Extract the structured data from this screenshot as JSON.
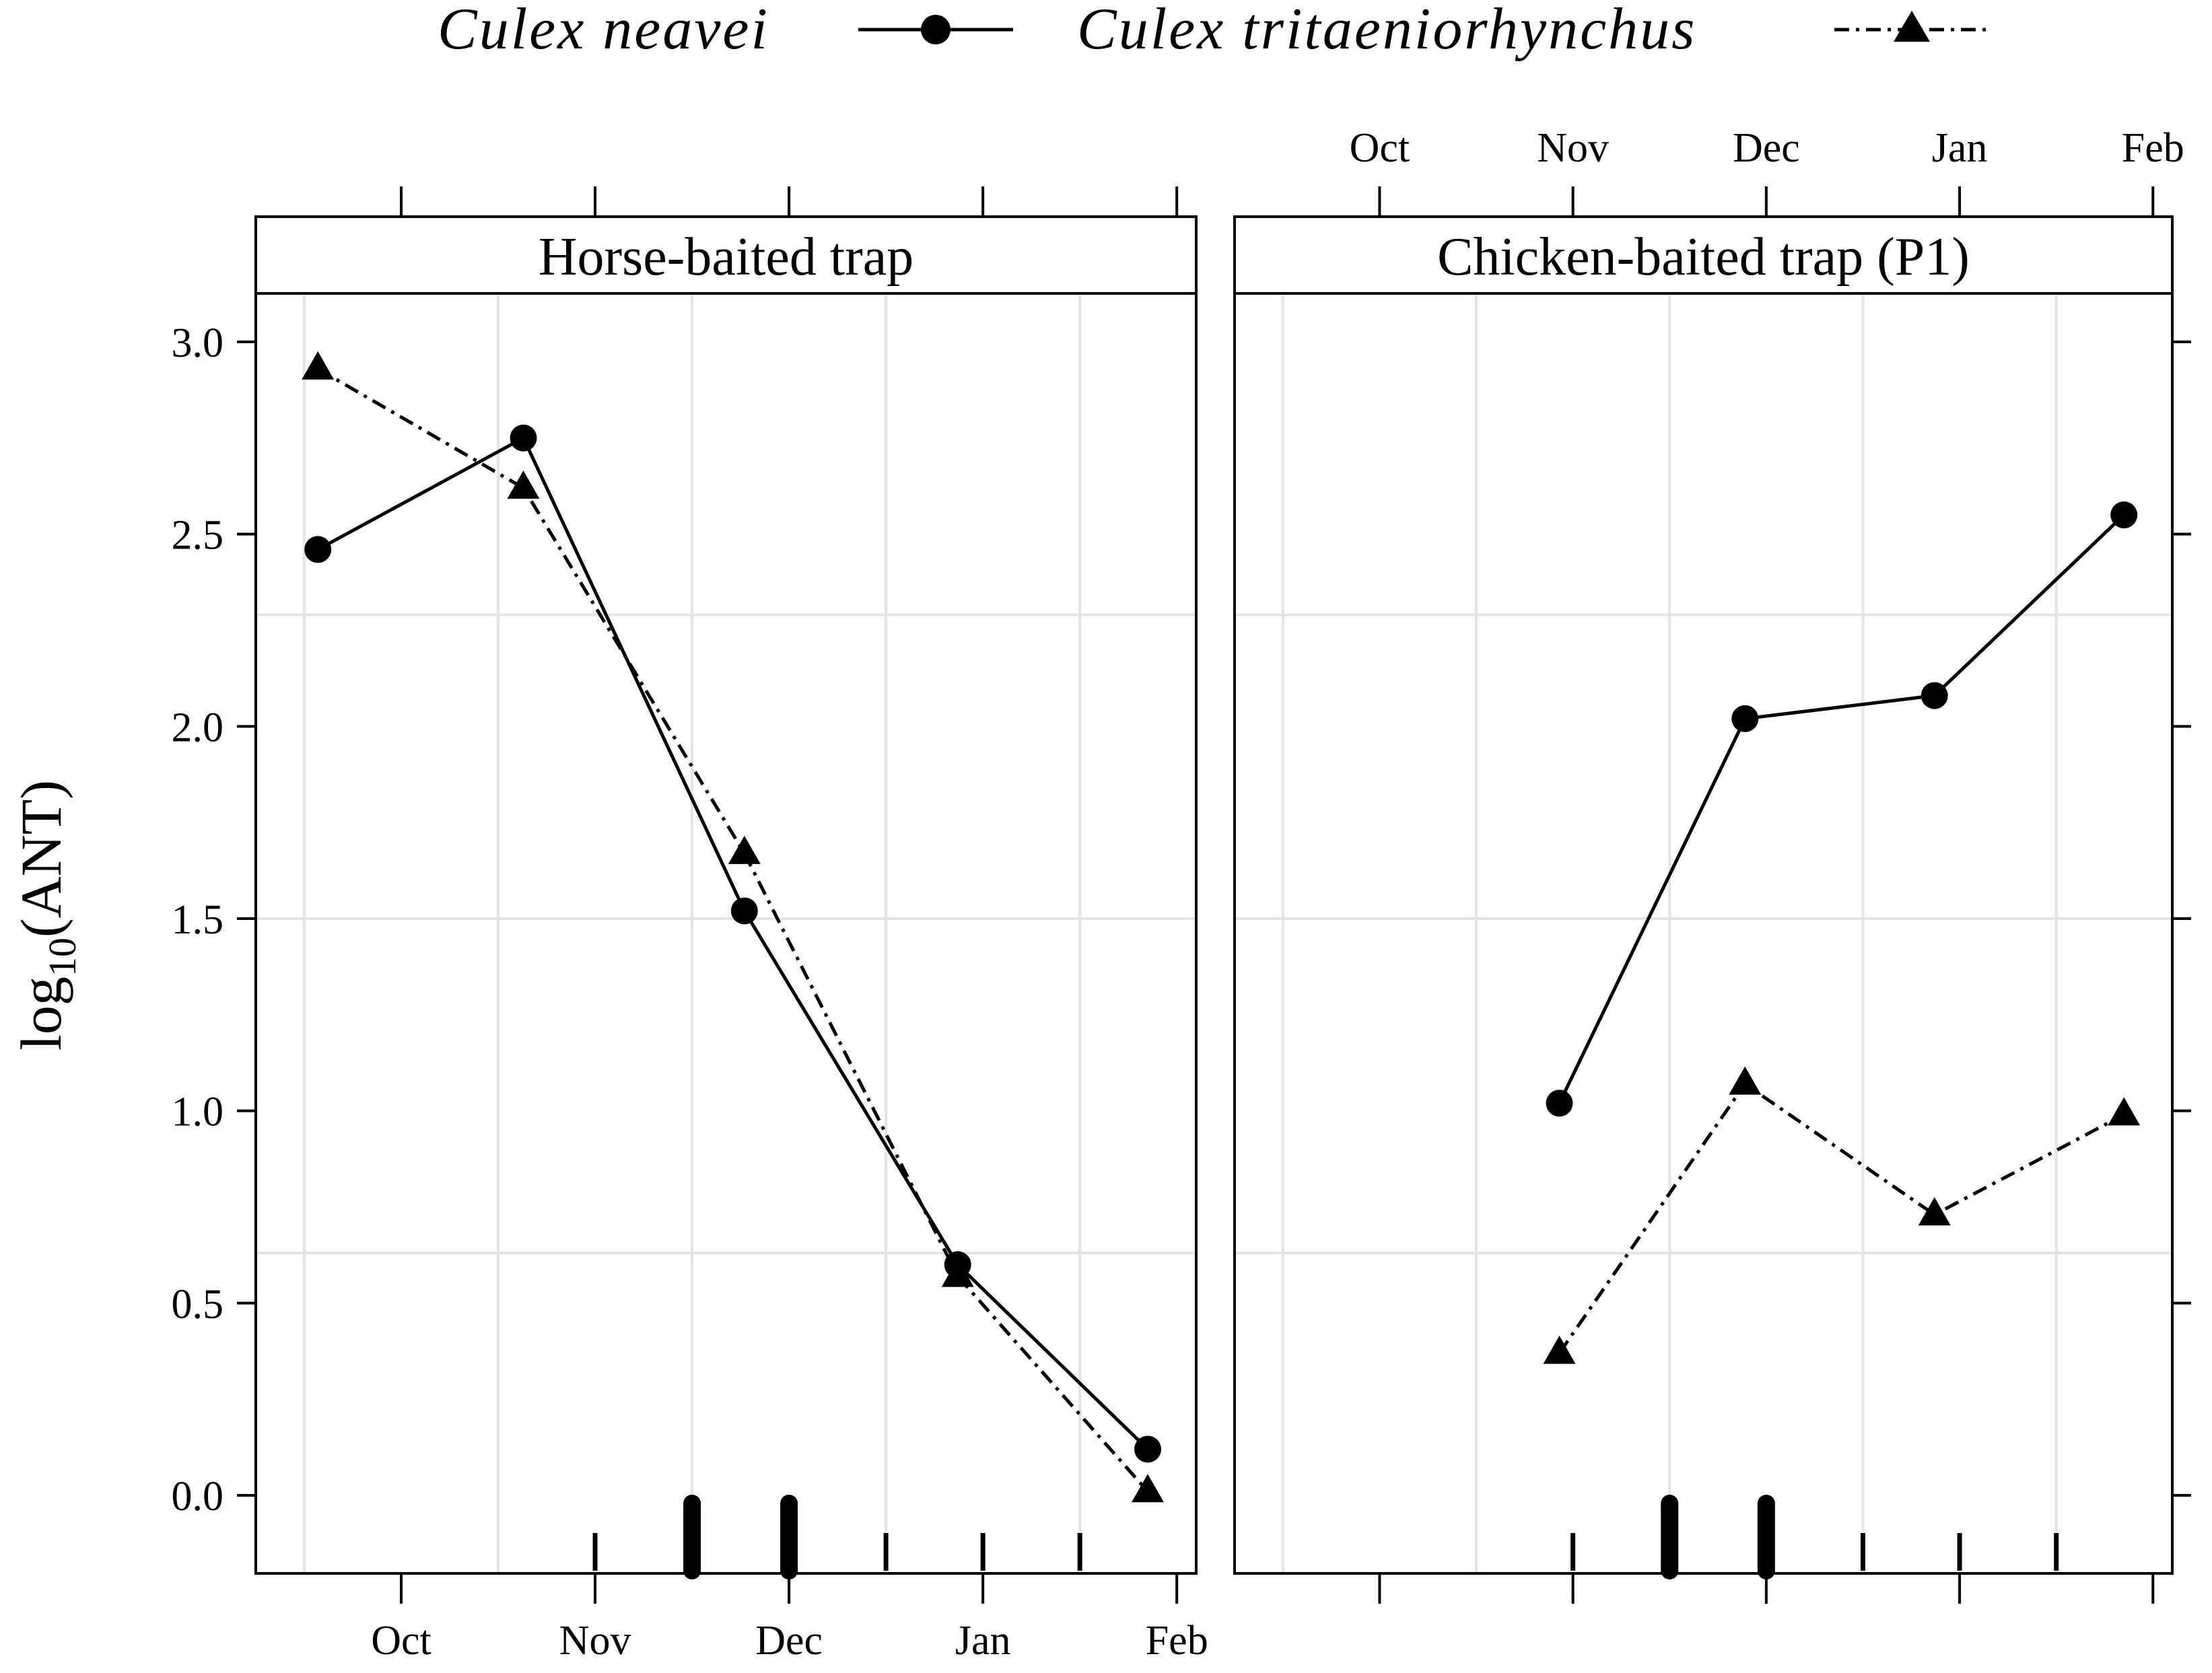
{
  "chart_data": {
    "type": "line",
    "ylabel": "log10(ANT)",
    "ylabel_parts": {
      "base": "log",
      "sub": "10",
      "rest": "(ANT)"
    },
    "ylim": [
      -0.2,
      3.1
    ],
    "yticks": [
      0.0,
      0.5,
      1.0,
      1.5,
      2.0,
      2.5,
      3.0
    ],
    "ytick_labels": [
      "0.0",
      "0.5",
      "1.0",
      "1.5",
      "2.0",
      "2.5",
      "3.0"
    ],
    "xlim": [
      -0.75,
      4.1
    ],
    "xticks": [
      0,
      1,
      2,
      3,
      4
    ],
    "xtick_labels": [
      "Oct",
      "Nov",
      "Dec",
      "Jan",
      "Feb"
    ],
    "legend": [
      {
        "name": "Culex neavei",
        "marker": "circle",
        "line": "solid"
      },
      {
        "name": "Culex tritaeniorhynchus",
        "marker": "triangle",
        "line": "dashdot"
      }
    ],
    "panels": [
      {
        "title": "Horse-baited trap",
        "grid_x": [
          -0.5,
          0.5,
          1.5,
          2.5,
          3.5
        ],
        "grid_y": [
          0.63,
          1.5,
          2.29
        ],
        "series": [
          {
            "name": "Culex neavei",
            "x": [
              -0.43,
              0.63,
              1.77,
              2.87,
              3.85
            ],
            "y": [
              2.46,
              2.75,
              1.52,
              0.6,
              0.12
            ]
          },
          {
            "name": "Culex tritaeniorhynchus",
            "x": [
              -0.43,
              0.63,
              1.77,
              2.87,
              3.85
            ],
            "y": [
              2.93,
              2.62,
              1.67,
              0.57,
              0.01
            ]
          }
        ],
        "rug": [
          {
            "x": 1.0,
            "weight": 1
          },
          {
            "x": 1.5,
            "weight": 3
          },
          {
            "x": 2.0,
            "weight": 3
          },
          {
            "x": 2.5,
            "weight": 1
          },
          {
            "x": 3.0,
            "weight": 1
          },
          {
            "x": 3.5,
            "weight": 1
          }
        ]
      },
      {
        "title": "Chicken-baited trap (P1)",
        "grid_x": [
          -0.5,
          0.5,
          1.5,
          2.5,
          3.5
        ],
        "grid_y": [
          0.63,
          1.5,
          2.29
        ],
        "series": [
          {
            "name": "Culex neavei",
            "x": [
              0.93,
              1.89,
              2.87,
              3.85
            ],
            "y": [
              1.02,
              2.02,
              2.08,
              2.55
            ]
          },
          {
            "name": "Culex tritaeniorhynchus",
            "x": [
              0.93,
              1.89,
              2.87,
              3.85
            ],
            "y": [
              0.37,
              1.07,
              0.73,
              0.99
            ]
          }
        ],
        "rug": [
          {
            "x": 1.0,
            "weight": 1
          },
          {
            "x": 1.5,
            "weight": 3
          },
          {
            "x": 2.0,
            "weight": 3
          },
          {
            "x": 2.5,
            "weight": 1
          },
          {
            "x": 3.0,
            "weight": 1
          },
          {
            "x": 3.5,
            "weight": 1
          }
        ]
      }
    ]
  }
}
